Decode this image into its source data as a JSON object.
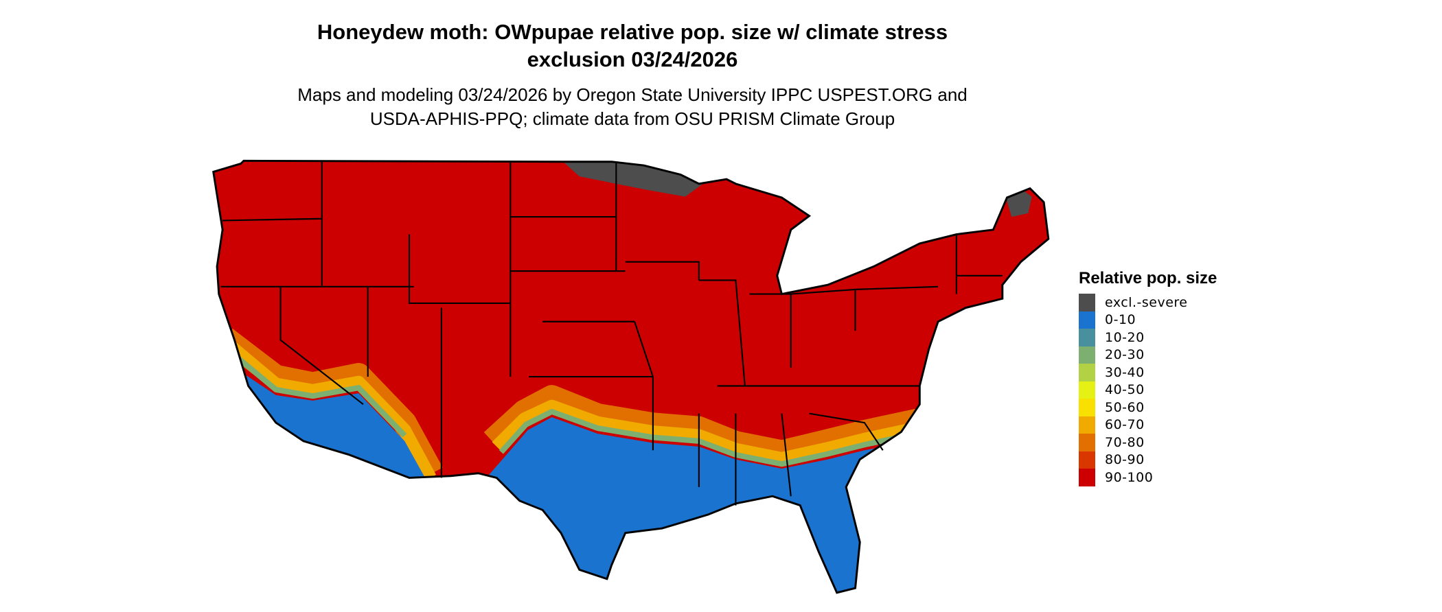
{
  "title": {
    "line1": "Honeydew moth: OWpupae relative pop. size w/ climate stress",
    "line2": "exclusion 03/24/2026"
  },
  "subtitle": {
    "line1": "Maps and modeling 03/24/2026 by Oregon State University IPPC USPEST.ORG and",
    "line2": "USDA-APHIS-PPQ; climate data from OSU PRISM Climate Group"
  },
  "legend": {
    "title": "Relative pop. size",
    "items": [
      {
        "label": "excl.-severe",
        "color": "#4d4d4d"
      },
      {
        "label": "0-10",
        "color": "#1a73cf"
      },
      {
        "label": "10-20",
        "color": "#48909e"
      },
      {
        "label": "20-30",
        "color": "#7db070"
      },
      {
        "label": "30-40",
        "color": "#b3d145"
      },
      {
        "label": "40-50",
        "color": "#e5f014"
      },
      {
        "label": "50-60",
        "color": "#f8e000"
      },
      {
        "label": "60-70",
        "color": "#f0aa00"
      },
      {
        "label": "70-80",
        "color": "#e27000"
      },
      {
        "label": "80-90",
        "color": "#d93600"
      },
      {
        "label": "90-100",
        "color": "#cc0000"
      }
    ]
  },
  "map": {
    "region": "Contiguous United States",
    "dominant_class": "90-100",
    "colors": {
      "high": "#cc0000",
      "low": "#1a73cf",
      "excluded": "#4d4d4d",
      "border": "#000000"
    }
  }
}
